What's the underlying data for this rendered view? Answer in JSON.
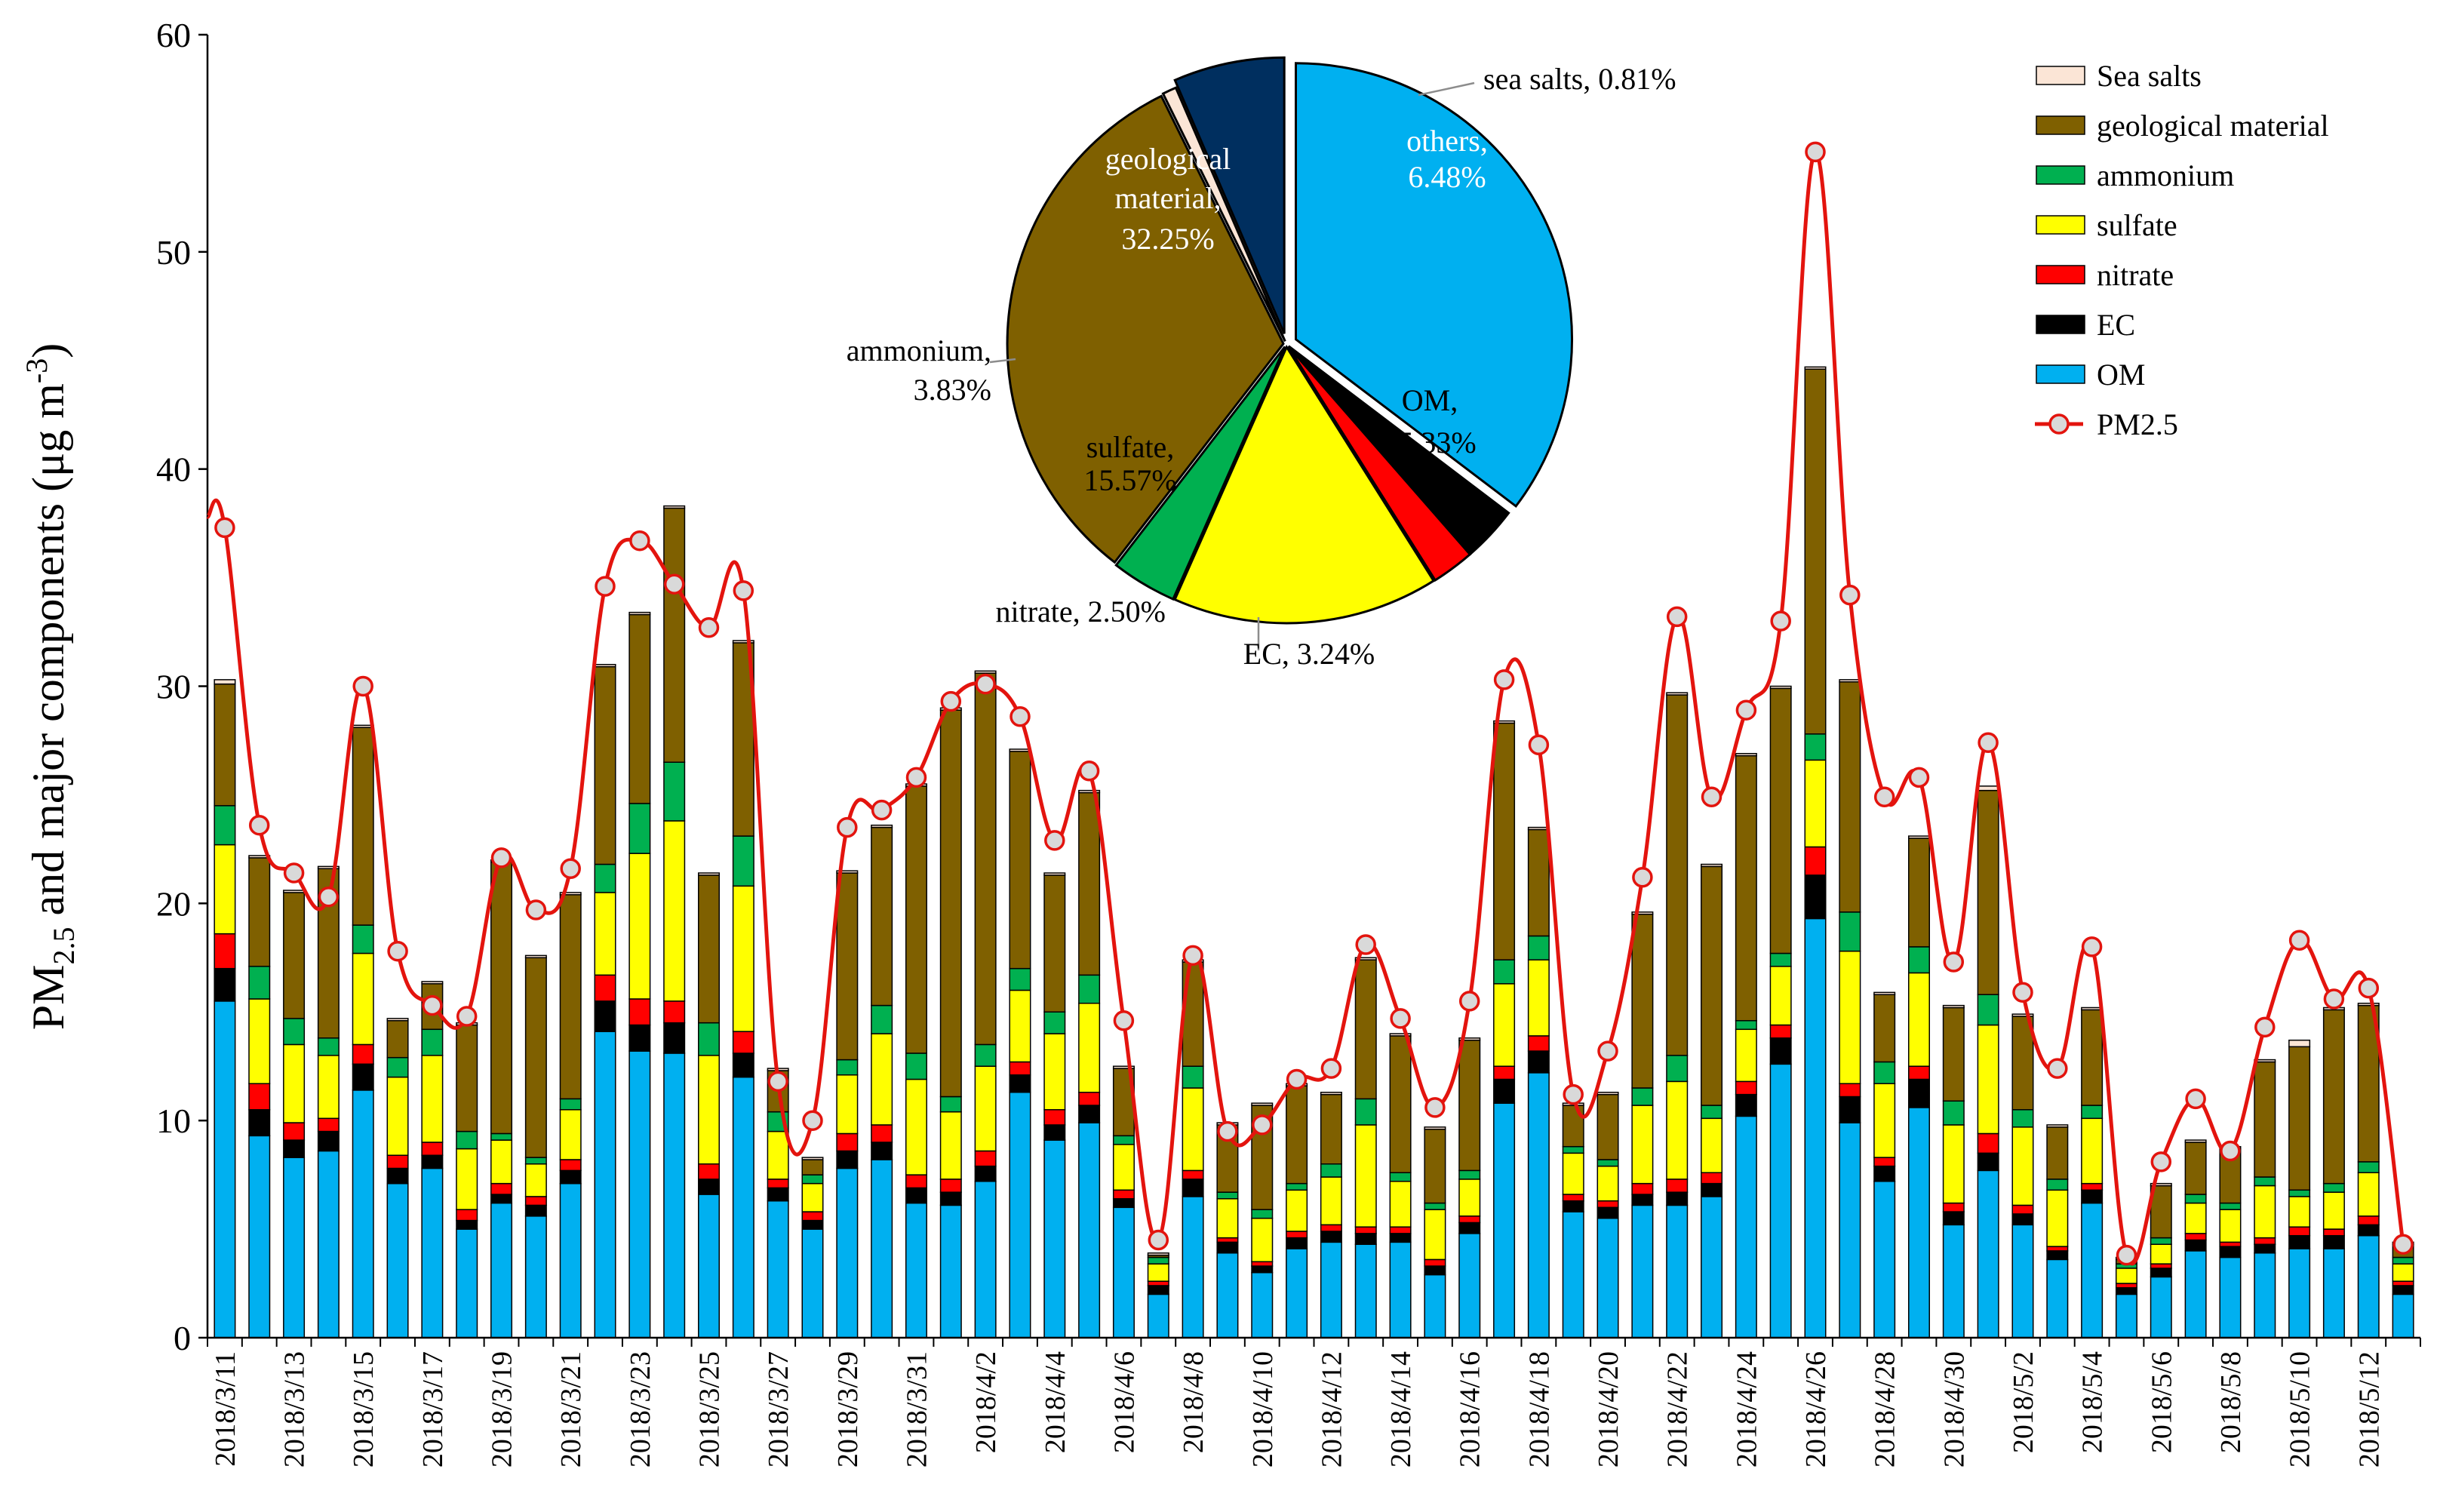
{
  "chart_data": [
    {
      "type": "bar",
      "stacked": true,
      "ylabel": "PM2.5 and major components (μg m-3)",
      "ylabel_parts": {
        "main": "PM",
        "sub": "2.5",
        "rest": " and major components (μg m",
        "sup": "-3",
        "end": ")"
      },
      "ylim": [
        0,
        60
      ],
      "yticks": [
        "0",
        "10",
        "20",
        "30",
        "40",
        "50",
        "60"
      ],
      "x": [
        "2018/3/11",
        "2018/3/12",
        "2018/3/13",
        "2018/3/14",
        "2018/3/15",
        "2018/3/16",
        "2018/3/17",
        "2018/3/18",
        "2018/3/19",
        "2018/3/20",
        "2018/3/21",
        "2018/3/22",
        "2018/3/23",
        "2018/3/24",
        "2018/3/25",
        "2018/3/26",
        "2018/3/27",
        "2018/3/28",
        "2018/3/29",
        "2018/3/30",
        "2018/3/31",
        "2018/4/1",
        "2018/4/2",
        "2018/4/3",
        "2018/4/4",
        "2018/4/5",
        "2018/4/6",
        "2018/4/7",
        "2018/4/8",
        "2018/4/9",
        "2018/4/10",
        "2018/4/11",
        "2018/4/12",
        "2018/4/13",
        "2018/4/14",
        "2018/4/15",
        "2018/4/16",
        "2018/4/17",
        "2018/4/18",
        "2018/4/19",
        "2018/4/20",
        "2018/4/21",
        "2018/4/22",
        "2018/4/23",
        "2018/4/24",
        "2018/4/25",
        "2018/4/26",
        "2018/4/27",
        "2018/4/28",
        "2018/4/29",
        "2018/4/30",
        "2018/5/1",
        "2018/5/2",
        "2018/5/3",
        "2018/5/4",
        "2018/5/5",
        "2018/5/6",
        "2018/5/7",
        "2018/5/8",
        "2018/5/9",
        "2018/5/10",
        "2018/5/11",
        "2018/5/12",
        "2018/5/13"
      ],
      "x_tick_labels": [
        "2018/3/11",
        "2018/3/13",
        "2018/3/15",
        "2018/3/17",
        "2018/3/19",
        "2018/3/21",
        "2018/3/23",
        "2018/3/25",
        "2018/3/27",
        "2018/3/29",
        "2018/3/31",
        "2018/4/2",
        "2018/4/4",
        "2018/4/6",
        "2018/4/8",
        "2018/4/10",
        "2018/4/12",
        "2018/4/14",
        "2018/4/16",
        "2018/4/18",
        "2018/4/20",
        "2018/4/22",
        "2018/4/24",
        "2018/4/26",
        "2018/4/28",
        "2018/4/30",
        "2018/5/2",
        "2018/5/4",
        "2018/5/6",
        "2018/5/8",
        "2018/5/10",
        "2018/5/12"
      ],
      "series": [
        {
          "name": "OM",
          "color": "#00b0f0",
          "values": [
            15.5,
            9.3,
            8.3,
            8.6,
            11.4,
            7.1,
            7.8,
            5.0,
            6.2,
            5.6,
            7.1,
            14.1,
            13.2,
            13.1,
            6.6,
            12.0,
            6.3,
            5.0,
            7.8,
            8.2,
            6.2,
            6.1,
            7.2,
            11.3,
            9.1,
            9.9,
            6.0,
            2.0,
            6.5,
            3.9,
            3.0,
            4.1,
            4.4,
            4.3,
            4.4,
            2.9,
            4.8,
            10.8,
            12.2,
            5.8,
            5.5,
            6.1,
            6.1,
            6.5,
            10.2,
            12.6,
            19.3,
            9.9,
            7.2,
            10.6,
            5.2,
            7.7,
            5.2,
            3.6,
            6.2,
            2.0,
            2.8,
            4.0,
            3.7,
            3.9,
            4.1,
            4.1,
            4.7,
            2.0
          ]
        },
        {
          "name": "EC",
          "color": "#000000",
          "values": [
            1.5,
            1.2,
            0.8,
            0.9,
            1.2,
            0.7,
            0.6,
            0.4,
            0.4,
            0.5,
            0.6,
            1.4,
            1.2,
            1.4,
            0.7,
            1.1,
            0.6,
            0.4,
            0.8,
            0.8,
            0.7,
            0.6,
            0.7,
            0.8,
            0.7,
            0.8,
            0.4,
            0.4,
            0.8,
            0.5,
            0.3,
            0.5,
            0.5,
            0.5,
            0.4,
            0.4,
            0.5,
            1.1,
            1.0,
            0.5,
            0.5,
            0.5,
            0.6,
            0.6,
            1.0,
            1.2,
            2.0,
            1.2,
            0.7,
            1.3,
            0.6,
            0.8,
            0.5,
            0.4,
            0.6,
            0.3,
            0.4,
            0.5,
            0.5,
            0.4,
            0.6,
            0.6,
            0.5,
            0.4
          ]
        },
        {
          "name": "nitrate",
          "color": "#ff0000",
          "values": [
            1.6,
            1.2,
            0.8,
            0.6,
            0.9,
            0.6,
            0.6,
            0.5,
            0.5,
            0.4,
            0.5,
            1.2,
            1.2,
            1.0,
            0.7,
            1.0,
            0.4,
            0.4,
            0.8,
            0.8,
            0.6,
            0.6,
            0.7,
            0.6,
            0.7,
            0.6,
            0.4,
            0.2,
            0.4,
            0.2,
            0.2,
            0.3,
            0.3,
            0.3,
            0.3,
            0.3,
            0.3,
            0.6,
            0.7,
            0.3,
            0.3,
            0.5,
            0.6,
            0.5,
            0.6,
            0.6,
            1.3,
            0.6,
            0.4,
            0.6,
            0.4,
            0.9,
            0.4,
            0.2,
            0.3,
            0.2,
            0.2,
            0.3,
            0.2,
            0.3,
            0.4,
            0.3,
            0.4,
            0.2
          ]
        },
        {
          "name": "sulfate",
          "color": "#ffff00",
          "values": [
            4.1,
            3.9,
            3.6,
            2.9,
            4.2,
            3.6,
            4.0,
            2.8,
            2.0,
            1.5,
            2.3,
            3.8,
            6.7,
            8.3,
            5.0,
            6.7,
            2.2,
            1.3,
            2.7,
            4.2,
            4.4,
            3.1,
            3.9,
            3.3,
            3.5,
            4.1,
            2.1,
            0.8,
            3.8,
            1.8,
            2.0,
            1.9,
            2.2,
            4.7,
            2.1,
            2.3,
            1.7,
            3.8,
            3.5,
            1.9,
            1.6,
            3.6,
            4.5,
            2.5,
            2.4,
            2.7,
            4.0,
            6.1,
            3.4,
            4.3,
            3.6,
            5.0,
            3.6,
            2.6,
            3.0,
            0.7,
            0.9,
            1.4,
            1.5,
            2.4,
            1.4,
            1.7,
            2.0,
            0.8
          ]
        },
        {
          "name": "ammonium",
          "color": "#00b050",
          "values": [
            1.8,
            1.5,
            1.2,
            0.8,
            1.3,
            0.9,
            1.2,
            0.8,
            0.3,
            0.3,
            0.5,
            1.3,
            2.3,
            2.7,
            1.5,
            2.3,
            0.9,
            0.4,
            0.7,
            1.3,
            1.2,
            0.7,
            1.0,
            1.0,
            1.0,
            1.3,
            0.4,
            0.3,
            1.0,
            0.3,
            0.4,
            0.3,
            0.6,
            1.2,
            0.4,
            0.3,
            0.4,
            1.1,
            1.1,
            0.3,
            0.3,
            0.8,
            1.2,
            0.6,
            0.4,
            0.6,
            1.2,
            1.8,
            1.0,
            1.2,
            1.1,
            1.4,
            0.8,
            0.5,
            0.6,
            0.2,
            0.3,
            0.4,
            0.3,
            0.4,
            0.3,
            0.4,
            0.5,
            0.3
          ]
        },
        {
          "name": "geological material",
          "color": "#7f6000",
          "values": [
            5.6,
            5.0,
            5.8,
            7.8,
            9.1,
            1.7,
            2.1,
            4.9,
            12.5,
            9.2,
            9.4,
            9.1,
            8.7,
            11.7,
            6.8,
            8.9,
            1.9,
            0.7,
            8.6,
            8.2,
            12.3,
            17.8,
            17.1,
            10.0,
            6.3,
            8.4,
            3.1,
            0.1,
            4.8,
            3.1,
            4.8,
            4.5,
            3.2,
            6.4,
            6.3,
            3.4,
            6.0,
            10.9,
            4.9,
            1.9,
            3.0,
            8.0,
            16.6,
            11.0,
            12.2,
            12.2,
            16.8,
            10.6,
            3.1,
            5.0,
            4.3,
            9.4,
            4.3,
            2.4,
            4.4,
            0.2,
            2.4,
            2.4,
            2.5,
            5.3,
            6.6,
            8.0,
            7.2,
            0.6
          ]
        },
        {
          "name": "Sea salts",
          "color": "#fbe5d6",
          "values": [
            0.2,
            0.1,
            0.1,
            0.1,
            0.1,
            0.1,
            0.1,
            0.1,
            0.1,
            0.1,
            0.1,
            0.1,
            0.1,
            0.1,
            0.1,
            0.1,
            0.1,
            0.1,
            0.1,
            0.1,
            0.1,
            0.1,
            0.1,
            0.1,
            0.1,
            0.1,
            0.1,
            0.1,
            0.1,
            0.1,
            0.1,
            0.1,
            0.1,
            0.1,
            0.1,
            0.1,
            0.1,
            0.1,
            0.1,
            0.1,
            0.1,
            0.1,
            0.1,
            0.1,
            0.1,
            0.1,
            0.1,
            0.1,
            0.1,
            0.1,
            0.1,
            0.2,
            0.1,
            0.1,
            0.1,
            0.1,
            0.1,
            0.1,
            0.1,
            0.1,
            0.3,
            0.1,
            0.1,
            0.1
          ]
        },
        {
          "name": "PM2.5",
          "type": "line",
          "color": "#e3140e",
          "marker": "circle",
          "values": [
            37.3,
            23.6,
            21.4,
            20.3,
            30.0,
            17.8,
            15.3,
            14.8,
            22.1,
            19.7,
            21.6,
            34.6,
            36.7,
            34.7,
            32.7,
            34.4,
            11.8,
            10.0,
            23.5,
            24.3,
            25.8,
            29.3,
            30.1,
            28.6,
            22.9,
            26.1,
            14.6,
            4.5,
            17.6,
            9.5,
            9.8,
            11.9,
            12.4,
            18.1,
            14.7,
            10.6,
            15.5,
            30.3,
            27.3,
            11.2,
            13.2,
            21.2,
            33.2,
            24.9,
            28.9,
            33.0,
            54.6,
            34.2,
            24.9,
            25.8,
            17.3,
            27.4,
            15.9,
            12.4,
            18.0,
            3.8,
            8.1,
            11.0,
            8.6,
            14.3,
            18.3,
            15.6,
            16.1,
            4.3
          ]
        }
      ],
      "legend": {
        "position": "top-right",
        "entries": [
          "Sea salts",
          "geological material",
          "ammonium",
          "sulfate",
          "nitrate",
          "EC",
          "OM",
          "PM2.5"
        ]
      }
    },
    {
      "type": "pie",
      "slices": [
        {
          "name": "OM",
          "label": "OM,",
          "pct": "35.33%",
          "value": 35.33,
          "color": "#00b0f0",
          "text_color": "#000000",
          "exploded": true
        },
        {
          "name": "EC",
          "label": "EC, 3.24%",
          "value": 3.24,
          "color": "#000000",
          "callout": true
        },
        {
          "name": "nitrate",
          "label": "nitrate, 2.50%",
          "value": 2.5,
          "color": "#ff0000",
          "callout": true
        },
        {
          "name": "sulfate",
          "label": "sulfate,",
          "pct": "15.57%",
          "value": 15.57,
          "color": "#ffff00",
          "text_color": "#000000"
        },
        {
          "name": "ammonium",
          "label": "ammonium,",
          "pct": "3.83%",
          "value": 3.83,
          "color": "#00b050",
          "callout": true
        },
        {
          "name": "geological material",
          "label": "geological",
          "label2": "material,",
          "pct": "32.25%",
          "value": 32.25,
          "color": "#7f6000",
          "text_color": "#ffffff"
        },
        {
          "name": "sea salts",
          "label": "sea salts, 0.81%",
          "value": 0.81,
          "color": "#fbe5d6",
          "callout": true
        },
        {
          "name": "others",
          "label": "others,",
          "pct": "6.48%",
          "value": 6.48,
          "color": "#002f5f",
          "text_color": "#ffffff",
          "exploded": true
        }
      ]
    }
  ]
}
